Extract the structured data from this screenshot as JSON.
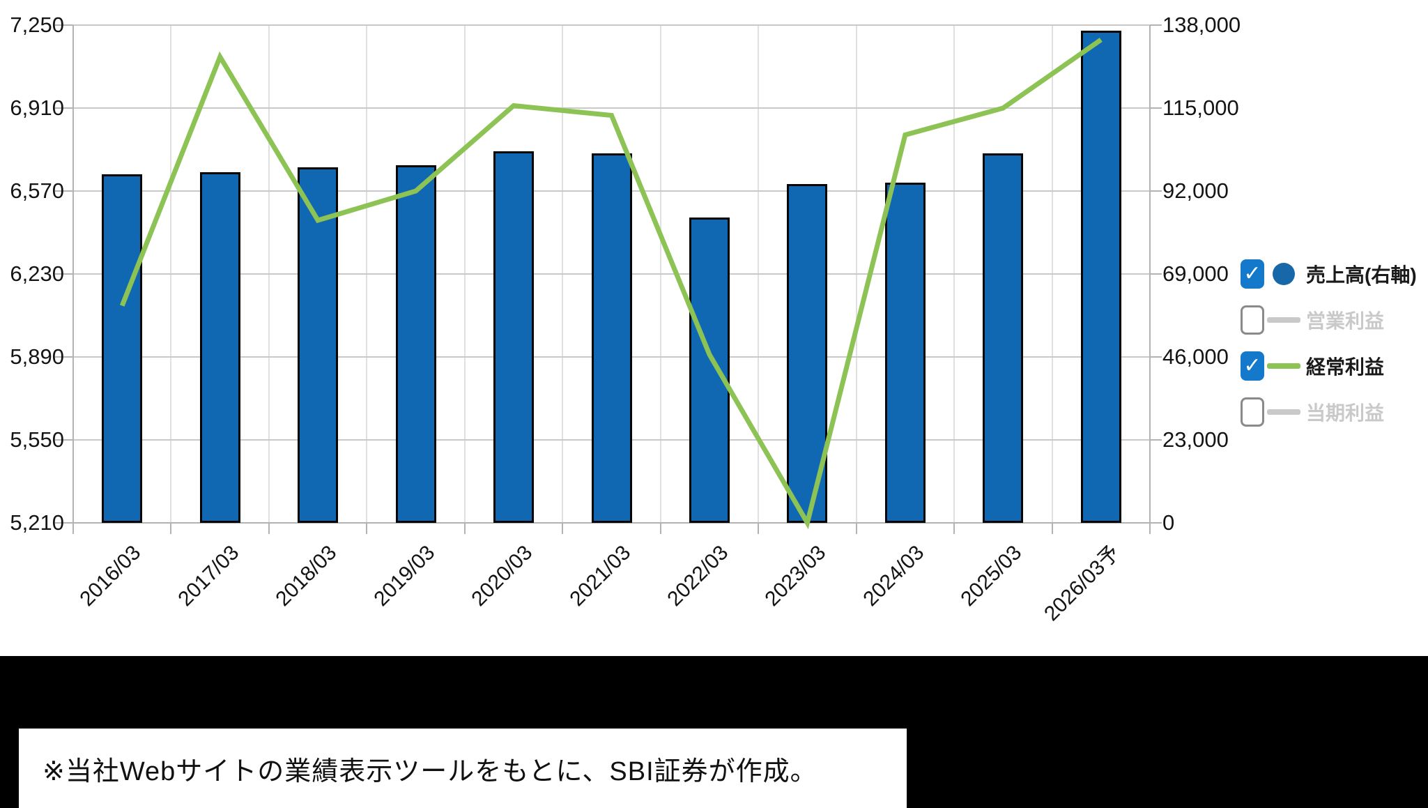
{
  "chart_data": {
    "type": "bar",
    "categories": [
      "2016/03",
      "2017/03",
      "2018/03",
      "2019/03",
      "2020/03",
      "2021/03",
      "2022/03",
      "2023/03",
      "2024/03",
      "2025/03",
      "2026/03予"
    ],
    "series": [
      {
        "name": "売上高(右軸)",
        "type": "bar",
        "axis": "right",
        "color": "#1068b3",
        "border_color": "#050505",
        "visible": true,
        "values": [
          96700,
          97300,
          98600,
          99200,
          103000,
          102400,
          84700,
          93900,
          94300,
          102400,
          136400
        ]
      },
      {
        "name": "営業利益",
        "type": "line",
        "axis": "left",
        "color": "#c9c9c9",
        "visible": false,
        "values": []
      },
      {
        "name": "経常利益",
        "type": "line",
        "axis": "left",
        "color": "#8dc255",
        "visible": true,
        "values": [
          6100,
          7120,
          6450,
          6570,
          6920,
          6880,
          5900,
          5210,
          6800,
          6910,
          7190
        ]
      },
      {
        "name": "当期利益",
        "type": "line",
        "axis": "left",
        "color": "#c9c9c9",
        "visible": false,
        "values": []
      }
    ],
    "left_axis": {
      "min": 5210,
      "max": 7250,
      "tick_labels": [
        "7,250",
        "6,910",
        "6,570",
        "6,230",
        "5,890",
        "5,550",
        "5,210"
      ]
    },
    "right_axis": {
      "min": 0,
      "max": 138000,
      "tick_labels": [
        "138,000",
        "115,000",
        "92,000",
        "69,000",
        "46,000",
        "23,000",
        "0"
      ]
    },
    "grid": true,
    "legend_position": "right"
  },
  "legend": {
    "items": [
      {
        "label": "売上高(右軸)",
        "checked": true,
        "marker": "circle",
        "marker_color": "#1668a8",
        "text_color": "#1a1a1a"
      },
      {
        "label": "営業利益",
        "checked": false,
        "marker": "line",
        "marker_color": "#c9c9c9",
        "text_color": "#c9c9c9"
      },
      {
        "label": "経常利益",
        "checked": true,
        "marker": "line",
        "marker_color": "#8dc255",
        "text_color": "#1a1a1a"
      },
      {
        "label": "当期利益",
        "checked": false,
        "marker": "line",
        "marker_color": "#c9c9c9",
        "text_color": "#c9c9c9"
      }
    ]
  },
  "footnote": {
    "text": "※当社Webサイトの業績表示ツールをもとに、SBI証券が作成。"
  }
}
